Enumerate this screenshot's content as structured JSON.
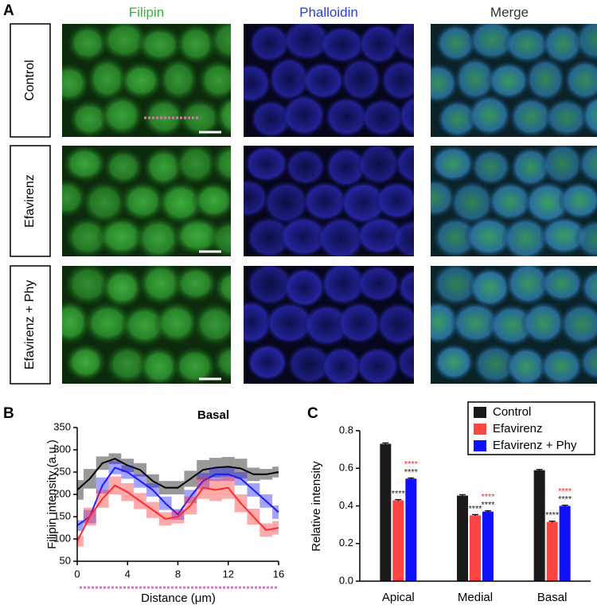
{
  "panels": {
    "a": "A",
    "b": "B",
    "c": "C"
  },
  "columns": [
    "Filipin",
    "Phalloidin",
    "Merge"
  ],
  "rows": [
    "Control",
    "Efavirenz",
    "Efavirenz + Phy"
  ],
  "chart_data": [
    {
      "type": "line",
      "title": "Basal",
      "x_label": "Distance (μm)",
      "y_label": "Filipin intensity (a.u.)",
      "x": [
        0,
        1,
        2,
        3,
        4,
        5,
        6,
        7,
        8,
        9,
        10,
        11,
        12,
        13,
        14,
        15,
        16
      ],
      "xlim": [
        0,
        16
      ],
      "xticks": [
        0,
        4,
        8,
        12,
        16
      ],
      "ylim": [
        50,
        350
      ],
      "yticks": [
        50,
        100,
        150,
        200,
        250,
        300,
        350
      ],
      "series": [
        {
          "color": "#000000",
          "values": [
            210,
            235,
            270,
            280,
            265,
            255,
            230,
            215,
            215,
            235,
            255,
            260,
            262,
            258,
            245,
            245,
            250
          ],
          "errors": [
            22,
            22,
            15,
            12,
            15,
            15,
            15,
            15,
            15,
            18,
            22,
            22,
            22,
            22,
            15,
            12,
            12
          ]
        },
        {
          "color": "#1a1aff",
          "values": [
            130,
            150,
            220,
            260,
            250,
            230,
            210,
            180,
            155,
            195,
            230,
            245,
            245,
            235,
            210,
            185,
            160
          ],
          "errors": [
            12,
            15,
            18,
            15,
            15,
            15,
            15,
            15,
            12,
            15,
            18,
            15,
            15,
            15,
            15,
            15,
            15
          ]
        },
        {
          "color": "#ff2a2a",
          "values": [
            95,
            150,
            190,
            220,
            205,
            185,
            165,
            145,
            150,
            175,
            215,
            210,
            215,
            180,
            150,
            120,
            125
          ],
          "errors": [
            12,
            20,
            20,
            20,
            20,
            18,
            18,
            15,
            15,
            20,
            25,
            25,
            25,
            20,
            18,
            15,
            15
          ]
        }
      ]
    },
    {
      "type": "bar",
      "y_label": "Relative intensity",
      "categories": [
        "Apical",
        "Medial",
        "Basal"
      ],
      "ylim": [
        0,
        0.8
      ],
      "yticks": [
        {
          "value": 0,
          "label": "0.0"
        },
        0.2,
        0.4,
        0.6,
        0.8
      ],
      "legend": "upper right",
      "series": [
        {
          "name": "Control",
          "color": "#1a1a1a",
          "values": [
            0.73,
            0.455,
            0.59
          ],
          "errors": [
            0.005,
            0.005,
            0.004
          ]
        },
        {
          "name": "Efavirenz",
          "color": "#ff4444",
          "values": [
            0.43,
            0.35,
            0.315
          ],
          "errors": [
            0.004,
            0.004,
            0.004
          ]
        },
        {
          "name": "Efavirenz + Phy",
          "color": "#1010ff",
          "values": [
            0.545,
            0.37,
            0.4
          ],
          "errors": [
            0.004,
            0.004,
            0.004
          ]
        }
      ],
      "significance": [
        {
          "series": 1,
          "color": "#222222",
          "labels": [
            "****",
            "****",
            "****"
          ]
        },
        {
          "series": 2,
          "color": "#222222",
          "labels": [
            "****",
            "****",
            "****"
          ]
        },
        {
          "series": 2,
          "color": "#e83535",
          "labels": [
            "****",
            "****",
            "****"
          ]
        }
      ]
    }
  ]
}
